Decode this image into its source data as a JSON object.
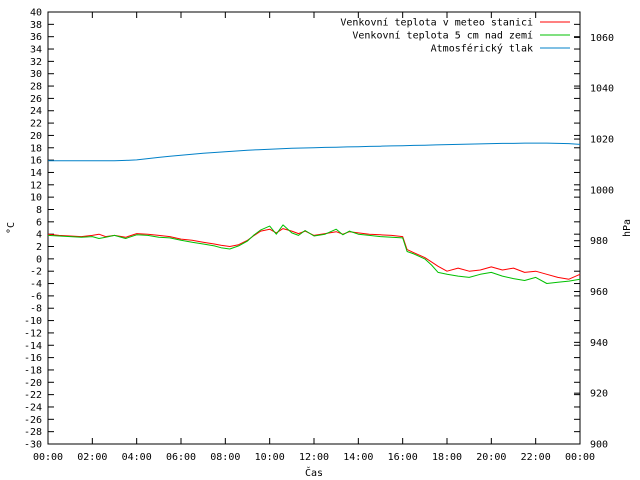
{
  "chart_data": {
    "type": "line",
    "xlabel": "Čas",
    "ylabel": "°C",
    "y2label": "hPa",
    "xlim": [
      0,
      24
    ],
    "ylim": [
      -30,
      40
    ],
    "y2lim": [
      900,
      1070
    ],
    "grid": false,
    "legend_position": "top-right",
    "x_ticks": [
      "00:00",
      "02:00",
      "04:00",
      "06:00",
      "08:00",
      "10:00",
      "12:00",
      "14:00",
      "16:00",
      "18:00",
      "20:00",
      "22:00",
      "00:00"
    ],
    "y_ticks": [
      "-30",
      "-28",
      "-26",
      "-24",
      "-22",
      "-20",
      "-18",
      "-16",
      "-14",
      "-12",
      "-10",
      "-8",
      "-6",
      "-4",
      "-2",
      "0",
      "2",
      "4",
      "6",
      "8",
      "10",
      "12",
      "14",
      "16",
      "18",
      "20",
      "22",
      "24",
      "26",
      "28",
      "30",
      "32",
      "34",
      "36",
      "38",
      "40"
    ],
    "y2_ticks": [
      "900",
      "920",
      "940",
      "960",
      "980",
      "1000",
      "1020",
      "1040",
      "1060"
    ],
    "series": [
      {
        "name": "Venkovní teplota v meteo stanici",
        "axis": "left",
        "color": "#ff0000",
        "x": [
          0,
          0.5,
          1,
          1.5,
          2,
          2.3,
          2.6,
          3,
          3.5,
          4,
          4.5,
          5,
          5.5,
          6,
          6.5,
          7,
          7.5,
          7.8,
          8.2,
          8.6,
          9,
          9.3,
          9.6,
          10,
          10.3,
          10.6,
          11,
          11.3,
          11.6,
          12,
          12.5,
          13,
          13.3,
          13.6,
          14,
          14.5,
          15,
          15.5,
          16,
          16.2,
          16.5,
          17,
          17.3,
          17.6,
          18,
          18.5,
          19,
          19.5,
          20,
          20.5,
          21,
          21.5,
          22,
          22.5,
          23,
          23.5,
          24
        ],
        "values": [
          4,
          3.8,
          3.7,
          3.6,
          3.8,
          4,
          3.6,
          3.8,
          3.5,
          4.1,
          4,
          3.8,
          3.6,
          3.2,
          3,
          2.7,
          2.4,
          2.2,
          2,
          2.3,
          3,
          3.8,
          4.5,
          4.8,
          4.2,
          4.9,
          4.5,
          4.1,
          4.5,
          3.8,
          4.1,
          4.4,
          4,
          4.4,
          4.2,
          4,
          3.9,
          3.8,
          3.6,
          1.5,
          1,
          0.2,
          -0.5,
          -1.2,
          -2,
          -1.5,
          -2,
          -1.8,
          -1.3,
          -1.8,
          -1.5,
          -2.2,
          -2,
          -2.5,
          -3,
          -3.3,
          -2.5
        ]
      },
      {
        "name": "Venkovní teplota 5 cm nad zemí",
        "axis": "left",
        "color": "#00c000",
        "x": [
          0,
          0.5,
          1,
          1.5,
          2,
          2.3,
          2.6,
          3,
          3.5,
          4,
          4.5,
          5,
          5.5,
          6,
          6.5,
          7,
          7.5,
          7.8,
          8.2,
          8.6,
          9,
          9.3,
          9.6,
          10,
          10.3,
          10.6,
          11,
          11.3,
          11.6,
          12,
          12.5,
          13,
          13.3,
          13.6,
          14,
          14.5,
          15,
          15.5,
          16,
          16.2,
          16.5,
          17,
          17.3,
          17.6,
          18,
          18.5,
          19,
          19.5,
          20,
          20.5,
          21,
          21.5,
          22,
          22.5,
          23,
          23.5,
          24
        ],
        "values": [
          3.8,
          3.7,
          3.6,
          3.5,
          3.6,
          3.3,
          3.5,
          3.8,
          3.3,
          3.9,
          3.8,
          3.5,
          3.4,
          3,
          2.7,
          2.4,
          2.1,
          1.8,
          1.6,
          2.1,
          2.9,
          3.9,
          4.7,
          5.3,
          4,
          5.5,
          4.2,
          3.8,
          4.6,
          3.7,
          4,
          4.8,
          3.9,
          4.5,
          4,
          3.8,
          3.6,
          3.5,
          3.4,
          1.2,
          0.8,
          0,
          -1,
          -2.2,
          -2.5,
          -2.8,
          -3,
          -2.5,
          -2.2,
          -2.8,
          -3.2,
          -3.5,
          -3,
          -4,
          -3.8,
          -3.6,
          -3.3
        ]
      },
      {
        "name": "Atmosférický tlak",
        "axis": "right",
        "color": "#0080c8",
        "x": [
          0,
          0.5,
          1,
          1.5,
          2,
          2.5,
          3,
          3.5,
          4,
          4.5,
          5,
          5.5,
          6,
          6.5,
          7,
          7.5,
          8,
          8.5,
          9,
          9.5,
          10,
          10.5,
          11,
          11.5,
          12,
          12.5,
          13,
          13.5,
          14,
          14.5,
          15,
          15.5,
          16,
          16.5,
          17,
          17.5,
          18,
          18.5,
          19,
          19.5,
          20,
          20.5,
          21,
          21.5,
          22,
          22.5,
          23,
          23.5,
          24
        ],
        "values": [
          1011.5,
          1011.5,
          1011.5,
          1011.5,
          1011.5,
          1011.5,
          1011.5,
          1011.6,
          1011.8,
          1012.3,
          1012.8,
          1013.2,
          1013.6,
          1014,
          1014.4,
          1014.7,
          1015,
          1015.3,
          1015.6,
          1015.8,
          1016,
          1016.2,
          1016.4,
          1016.5,
          1016.6,
          1016.7,
          1016.8,
          1016.9,
          1017,
          1017.1,
          1017.2,
          1017.3,
          1017.4,
          1017.5,
          1017.6,
          1017.7,
          1017.8,
          1017.9,
          1018,
          1018.1,
          1018.2,
          1018.3,
          1018.3,
          1018.4,
          1018.4,
          1018.4,
          1018.3,
          1018.2,
          1017.9
        ]
      }
    ]
  }
}
